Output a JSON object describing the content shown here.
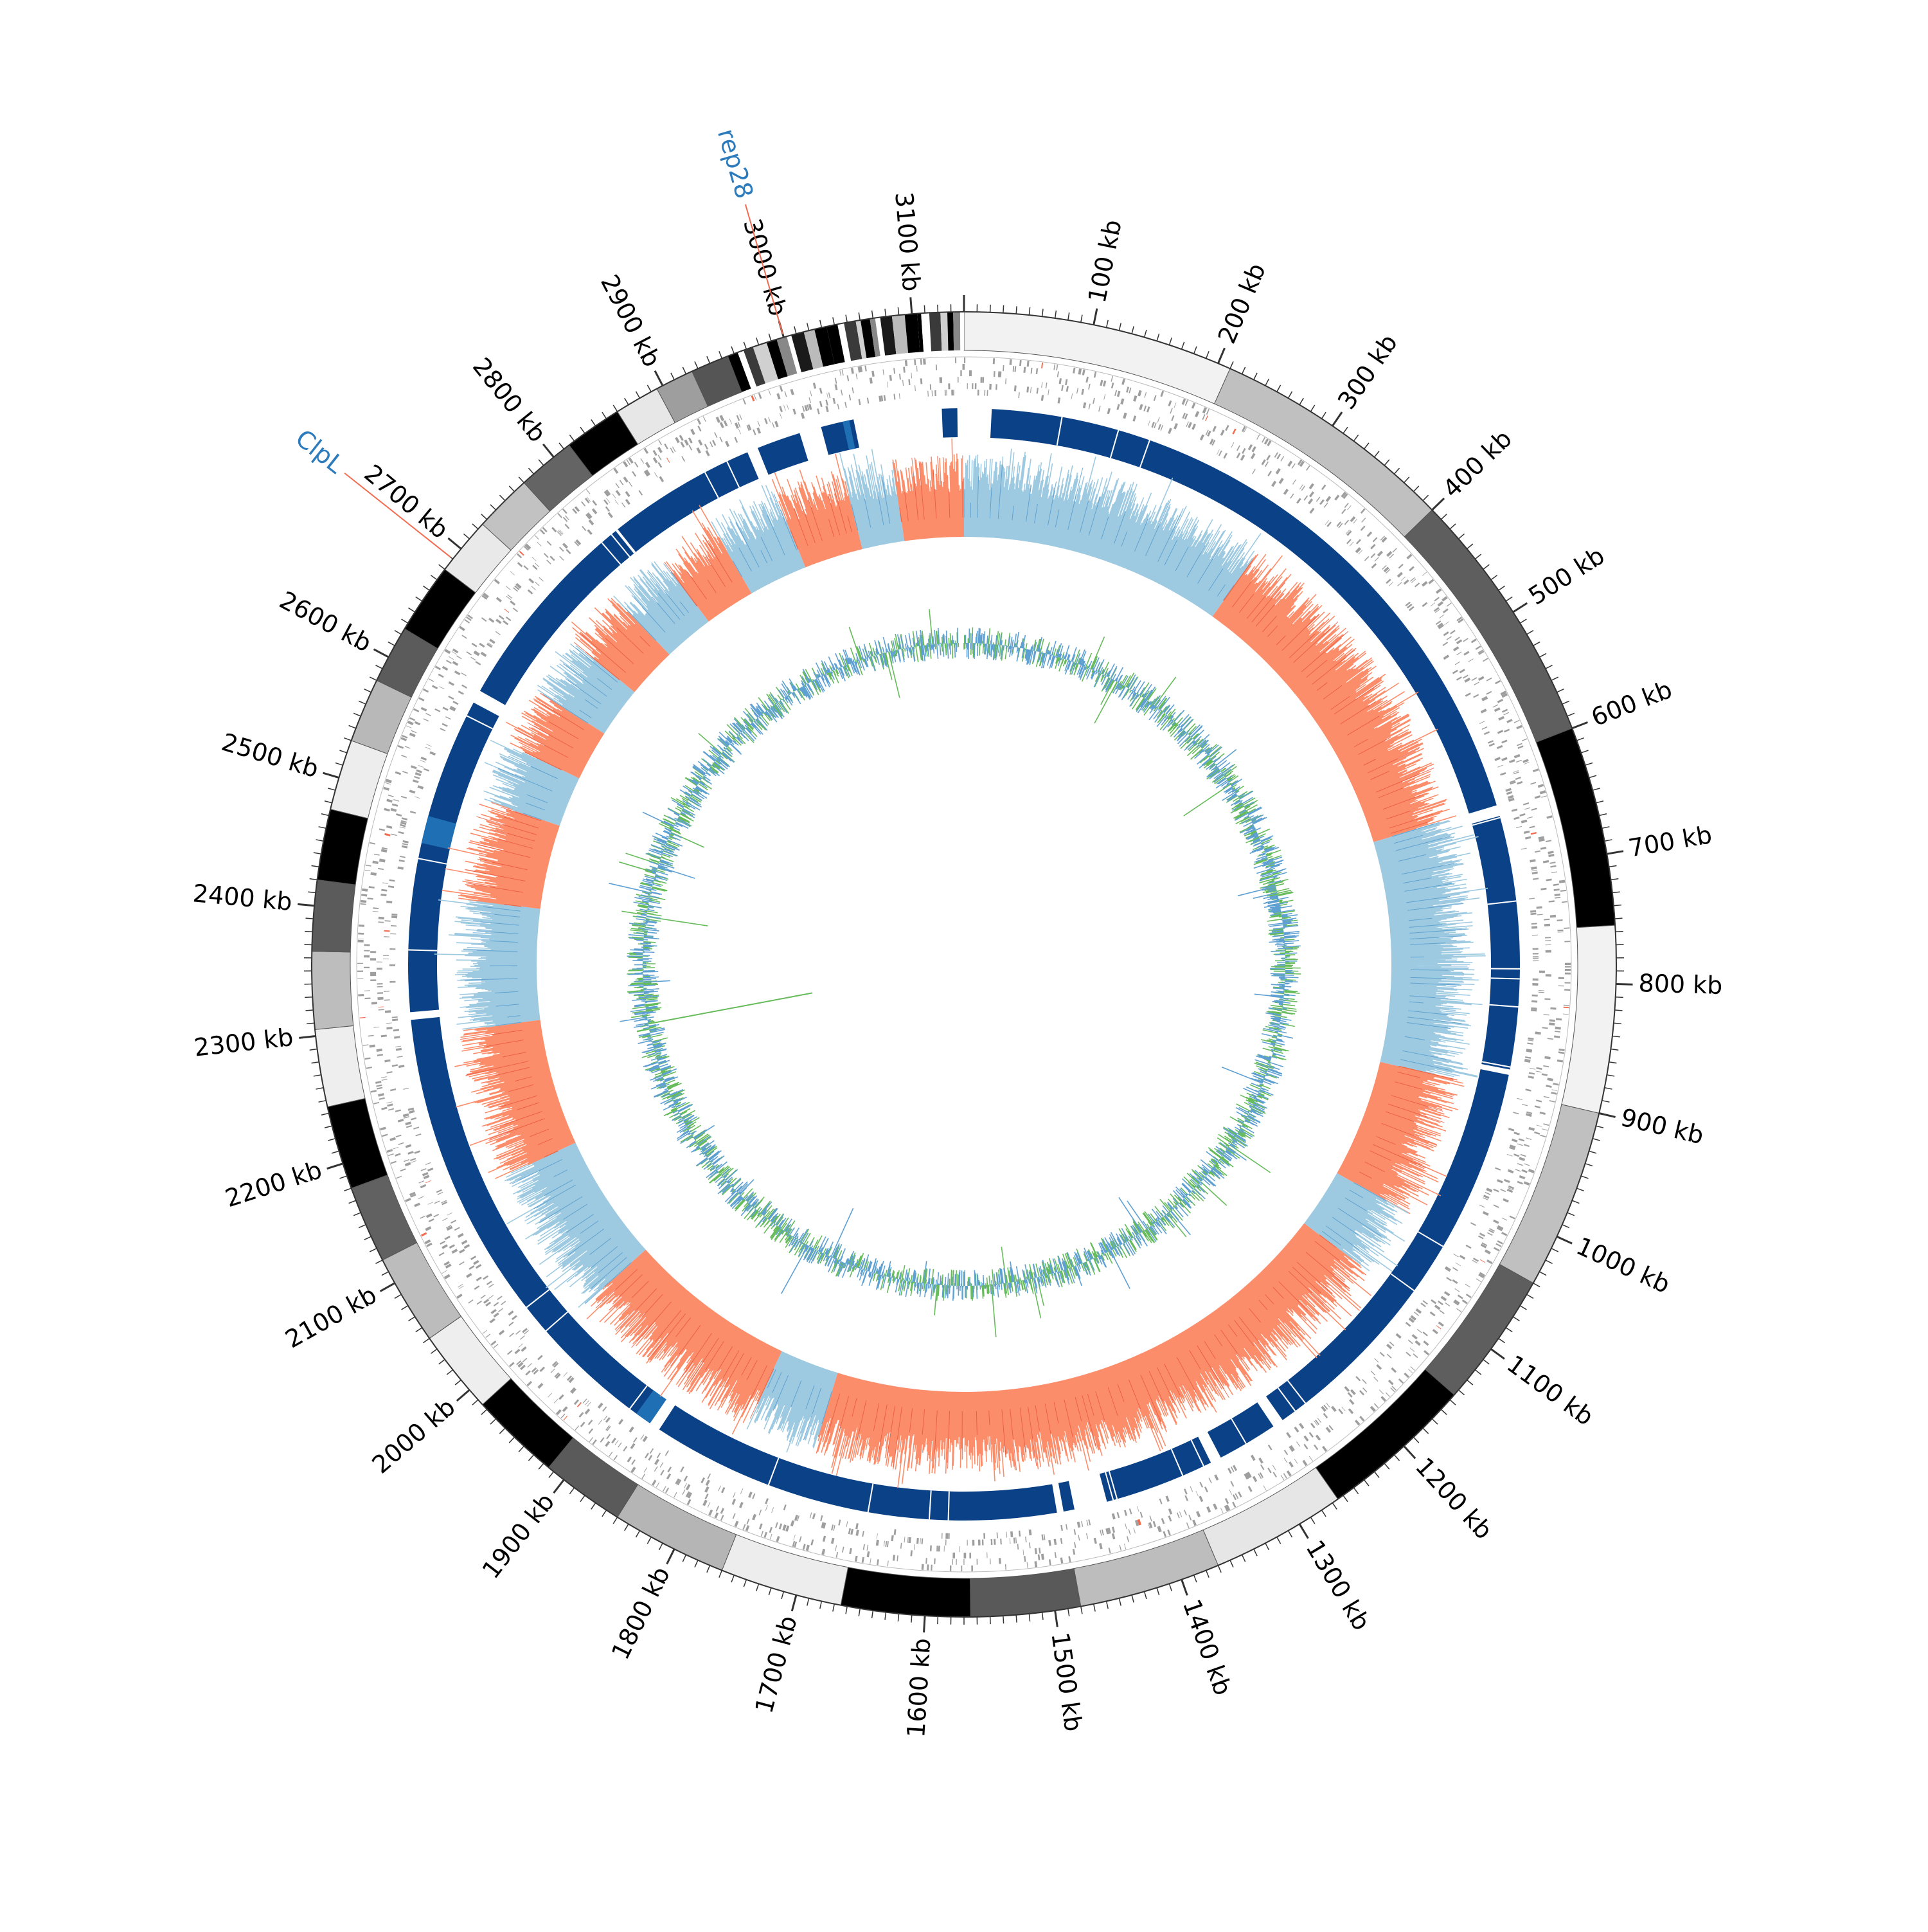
{
  "genome": {
    "length_kb": 3140,
    "unit": "kb",
    "tick_label_step_kb": 100,
    "minor_tick_step_kb": 10
  },
  "tick_labels": [
    "100 kb",
    "200 kb",
    "300 kb",
    "400 kb",
    "500 kb",
    "600 kb",
    "700 kb",
    "800 kb",
    "900 kb",
    "1000 kb",
    "1100 kb",
    "1200 kb",
    "1300 kb",
    "1400 kb",
    "1500 kb",
    "1600 kb",
    "1700 kb",
    "1800 kb",
    "1900 kb",
    "2000 kb",
    "2100 kb",
    "2200 kb",
    "2300 kb",
    "2400 kb",
    "2500 kb",
    "2600 kb",
    "2700 kb",
    "2800 kb",
    "2900 kb",
    "3000 kb",
    "3100 kb"
  ],
  "annotations": [
    {
      "label": "rep28",
      "position_kb": 3000,
      "label_color": "#2c7bbd",
      "line_color": "#f26b4f"
    },
    {
      "label": "ClpL",
      "position_kb": 2690,
      "label_color": "#2c7bbd",
      "line_color": "#f26b4f"
    }
  ],
  "contig_band": {
    "shades": [
      "#f2f2f2",
      "#c0c0c0",
      "#5e5e5e",
      "#000000",
      "#f2f2f2",
      "#c0c0c0",
      "#5e5e5e",
      "#000000",
      "#e6e6e6",
      "#bdbdbd",
      "#595959",
      "#000000",
      "#ededed",
      "#b5b5b5",
      "#5a5a5a",
      "#000000",
      "#eeeeee",
      "#bcbcbc",
      "#616161",
      "#000000",
      "#eeeeee",
      "#bdbdbd",
      "#5b5b5b",
      "#000000",
      "#ededed",
      "#b8b8b8",
      "#5b5b5b",
      "#000000",
      "#e9e9e9",
      "#c2c2c2",
      "#646464",
      "#000000",
      "#e7e7e7",
      "#9e9e9e",
      "#555555"
    ],
    "segments_kb": [
      [
        0,
        210
      ],
      [
        210,
        400
      ],
      [
        400,
        600
      ],
      [
        600,
        755
      ],
      [
        755,
        900
      ],
      [
        900,
        1040
      ],
      [
        1040,
        1145
      ],
      [
        1145,
        1265
      ],
      [
        1265,
        1370
      ],
      [
        1370,
        1480
      ],
      [
        1480,
        1565
      ],
      [
        1565,
        1665
      ],
      [
        1665,
        1760
      ],
      [
        1760,
        1850
      ],
      [
        1850,
        1915
      ],
      [
        1915,
        1985
      ],
      [
        1985,
        2050
      ],
      [
        2050,
        2120
      ],
      [
        2120,
        2180
      ],
      [
        2180,
        2245
      ],
      [
        2245,
        2305
      ],
      [
        2305,
        2365
      ],
      [
        2365,
        2420
      ],
      [
        2420,
        2475
      ],
      [
        2475,
        2530
      ],
      [
        2530,
        2580
      ],
      [
        2580,
        2625
      ],
      [
        2625,
        2680
      ],
      [
        2680,
        2725
      ],
      [
        2725,
        2770
      ],
      [
        2770,
        2815
      ],
      [
        2815,
        2860
      ],
      [
        2860,
        2895
      ],
      [
        2895,
        2925
      ],
      [
        2925,
        2955
      ]
    ]
  },
  "track_colors": {
    "gene_features": "#9e9e9e",
    "gene_highlight": "#f26b4f",
    "blast_ring": "#0b4287",
    "blast_alt": "#1f6fb4",
    "gc_skew_positive": "#9ecae1",
    "gc_skew_negative": "#fc8d6b",
    "gc_skew_line": "#4f97cc",
    "gc_content_line": "#5fa0d3",
    "gc_content_alt": "#66bb5a"
  },
  "blast_gaps_kb": [
    [
      3134,
      3140
    ],
    [
      15,
      25
    ],
    [
      640,
      650
    ],
    [
      880,
      885
    ],
    [
      1265,
      1275
    ],
    [
      1330,
      1340
    ],
    [
      1440,
      1470
    ],
    [
      1480,
      1486
    ],
    [
      1860,
      1870
    ],
    [
      2305,
      2312
    ],
    [
      2600,
      2612
    ],
    [
      2940,
      2950
    ],
    [
      2990,
      3010
    ],
    [
      3040,
      3120
    ]
  ],
  "gc_skew_sign_regions_kb": [
    [
      0,
      310,
      1
    ],
    [
      310,
      640,
      -1
    ],
    [
      640,
      900,
      1
    ],
    [
      900,
      1040,
      -1
    ],
    [
      1040,
      1110,
      1
    ],
    [
      1110,
      1720,
      -1
    ],
    [
      1720,
      1790,
      1
    ],
    [
      1790,
      1990,
      -1
    ],
    [
      1990,
      2140,
      1
    ],
    [
      2140,
      2290,
      -1
    ],
    [
      2290,
      2420,
      1
    ],
    [
      2420,
      2520,
      -1
    ],
    [
      2520,
      2580,
      1
    ],
    [
      2580,
      2640,
      -1
    ],
    [
      2640,
      2700,
      1
    ],
    [
      2700,
      2760,
      -1
    ],
    [
      2760,
      2820,
      1
    ],
    [
      2820,
      2880,
      -1
    ],
    [
      2880,
      2950,
      1
    ],
    [
      2950,
      3020,
      -1
    ],
    [
      3020,
      3070,
      1
    ],
    [
      3070,
      3140,
      -1
    ]
  ]
}
